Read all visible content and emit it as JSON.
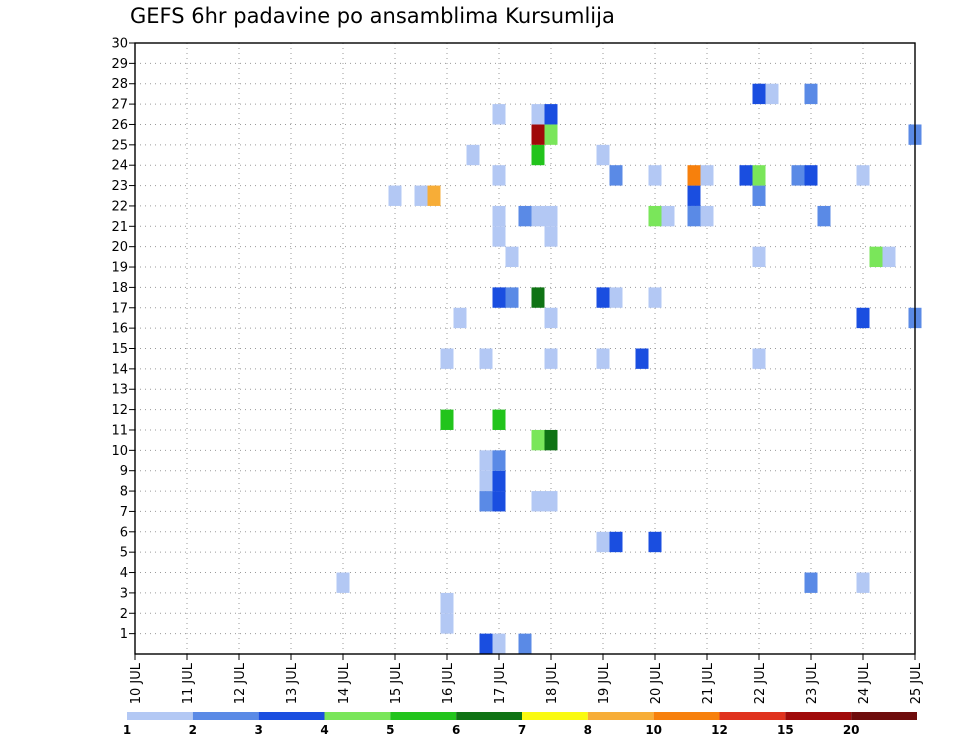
{
  "chart_data": {
    "type": "heatmap",
    "title": "GEFS 6hr padavine po ansamblima Kursumlija",
    "xlabel": "",
    "ylabel": "",
    "x_range": [
      0,
      15
    ],
    "x_tick_labels": [
      "10 JUL",
      "11 JUL",
      "12 JUL",
      "13 JUL",
      "14 JUL",
      "15 JUL",
      "16 JUL",
      "17 JUL",
      "18 JUL",
      "19 JUL",
      "20 JUL",
      "21 JUL",
      "22 JUL",
      "23 JUL",
      "24 JUL",
      "25 JUL"
    ],
    "y_range": [
      0,
      30
    ],
    "y_tick_labels": [
      "1",
      "2",
      "3",
      "4",
      "5",
      "6",
      "7",
      "8",
      "9",
      "10",
      "11",
      "12",
      "13",
      "14",
      "15",
      "16",
      "17",
      "18",
      "19",
      "20",
      "21",
      "22",
      "23",
      "24",
      "25",
      "26",
      "27",
      "28",
      "29",
      "30"
    ],
    "grid": true,
    "time_step_days": 0.25,
    "color_scale": {
      "labels": [
        "1",
        "2",
        "3",
        "4",
        "5",
        "6",
        "7",
        "8",
        "10",
        "12",
        "15",
        "20"
      ],
      "colors": [
        "#b3c8f4",
        "#5a8ae6",
        "#1a4ee0",
        "#7ae65a",
        "#22c41c",
        "#0f7314",
        "#fafa10",
        "#f7ad37",
        "#f7800c",
        "#e0321e",
        "#a00a0a",
        "#6e0c0c"
      ]
    },
    "cells": [
      {
        "day": 16.75,
        "member": 0,
        "level": 3
      },
      {
        "day": 17,
        "member": 0,
        "level": 1
      },
      {
        "day": 17.5,
        "member": 0,
        "level": 2
      },
      {
        "day": 16,
        "member": 1,
        "level": 1
      },
      {
        "day": 16,
        "member": 2,
        "level": 1
      },
      {
        "day": 14,
        "member": 3,
        "level": 1
      },
      {
        "day": 23,
        "member": 3,
        "level": 2
      },
      {
        "day": 24,
        "member": 3,
        "level": 1
      },
      {
        "day": 19,
        "member": 5,
        "level": 1
      },
      {
        "day": 19.25,
        "member": 5,
        "level": 3
      },
      {
        "day": 20,
        "member": 5,
        "level": 3
      },
      {
        "day": 16.75,
        "member": 7,
        "level": 2
      },
      {
        "day": 17,
        "member": 7,
        "level": 3
      },
      {
        "day": 17.75,
        "member": 7,
        "level": 1
      },
      {
        "day": 18,
        "member": 7,
        "level": 1
      },
      {
        "day": 16.75,
        "member": 8,
        "level": 1
      },
      {
        "day": 17,
        "member": 8,
        "level": 3
      },
      {
        "day": 16.75,
        "member": 9,
        "level": 1
      },
      {
        "day": 17,
        "member": 9,
        "level": 2
      },
      {
        "day": 17.75,
        "member": 10,
        "level": 4
      },
      {
        "day": 18,
        "member": 10,
        "level": 6
      },
      {
        "day": 16,
        "member": 11,
        "level": 5
      },
      {
        "day": 17,
        "member": 11,
        "level": 5
      },
      {
        "day": 16,
        "member": 14,
        "level": 1
      },
      {
        "day": 16.75,
        "member": 14,
        "level": 1
      },
      {
        "day": 18,
        "member": 14,
        "level": 1
      },
      {
        "day": 19,
        "member": 14,
        "level": 1
      },
      {
        "day": 19.75,
        "member": 14,
        "level": 3
      },
      {
        "day": 22,
        "member": 14,
        "level": 1
      },
      {
        "day": 16.25,
        "member": 16,
        "level": 1
      },
      {
        "day": 18,
        "member": 16,
        "level": 1
      },
      {
        "day": 24,
        "member": 16,
        "level": 3
      },
      {
        "day": 25,
        "member": 16,
        "level": 2
      },
      {
        "day": 17,
        "member": 17,
        "level": 3
      },
      {
        "day": 17.25,
        "member": 17,
        "level": 2
      },
      {
        "day": 17.75,
        "member": 17,
        "level": 6
      },
      {
        "day": 19,
        "member": 17,
        "level": 3
      },
      {
        "day": 19.25,
        "member": 17,
        "level": 1
      },
      {
        "day": 20,
        "member": 17,
        "level": 1
      },
      {
        "day": 17.25,
        "member": 19,
        "level": 1
      },
      {
        "day": 22,
        "member": 19,
        "level": 1
      },
      {
        "day": 24.25,
        "member": 19,
        "level": 4
      },
      {
        "day": 24.5,
        "member": 19,
        "level": 1
      },
      {
        "day": 17,
        "member": 20,
        "level": 1
      },
      {
        "day": 18,
        "member": 20,
        "level": 1
      },
      {
        "day": 17,
        "member": 21,
        "level": 1
      },
      {
        "day": 17.5,
        "member": 21,
        "level": 2
      },
      {
        "day": 17.75,
        "member": 21,
        "level": 1
      },
      {
        "day": 18,
        "member": 21,
        "level": 1
      },
      {
        "day": 20,
        "member": 21,
        "level": 4
      },
      {
        "day": 20.25,
        "member": 21,
        "level": 1
      },
      {
        "day": 20.75,
        "member": 21,
        "level": 2
      },
      {
        "day": 21,
        "member": 21,
        "level": 1
      },
      {
        "day": 23.25,
        "member": 21,
        "level": 2
      },
      {
        "day": 15,
        "member": 22,
        "level": 1
      },
      {
        "day": 15.5,
        "member": 22,
        "level": 1
      },
      {
        "day": 15.75,
        "member": 22,
        "level": 8
      },
      {
        "day": 20.75,
        "member": 22,
        "level": 3
      },
      {
        "day": 22,
        "member": 22,
        "level": 2
      },
      {
        "day": 17,
        "member": 23,
        "level": 1
      },
      {
        "day": 19.25,
        "member": 23,
        "level": 2
      },
      {
        "day": 20,
        "member": 23,
        "level": 1
      },
      {
        "day": 20.75,
        "member": 23,
        "level": 9
      },
      {
        "day": 21,
        "member": 23,
        "level": 1
      },
      {
        "day": 21.75,
        "member": 23,
        "level": 3
      },
      {
        "day": 22,
        "member": 23,
        "level": 4
      },
      {
        "day": 22.75,
        "member": 23,
        "level": 2
      },
      {
        "day": 23,
        "member": 23,
        "level": 3
      },
      {
        "day": 24,
        "member": 23,
        "level": 1
      },
      {
        "day": 16.5,
        "member": 24,
        "level": 1
      },
      {
        "day": 17.75,
        "member": 24,
        "level": 5
      },
      {
        "day": 19,
        "member": 24,
        "level": 1
      },
      {
        "day": 17.75,
        "member": 25,
        "level": 11
      },
      {
        "day": 18,
        "member": 25,
        "level": 4
      },
      {
        "day": 25,
        "member": 25,
        "level": 2
      },
      {
        "day": 17,
        "member": 26,
        "level": 1
      },
      {
        "day": 17.75,
        "member": 26,
        "level": 1
      },
      {
        "day": 18,
        "member": 26,
        "level": 3
      },
      {
        "day": 22,
        "member": 27,
        "level": 3
      },
      {
        "day": 22.25,
        "member": 27,
        "level": 1
      },
      {
        "day": 23,
        "member": 27,
        "level": 2
      }
    ]
  }
}
